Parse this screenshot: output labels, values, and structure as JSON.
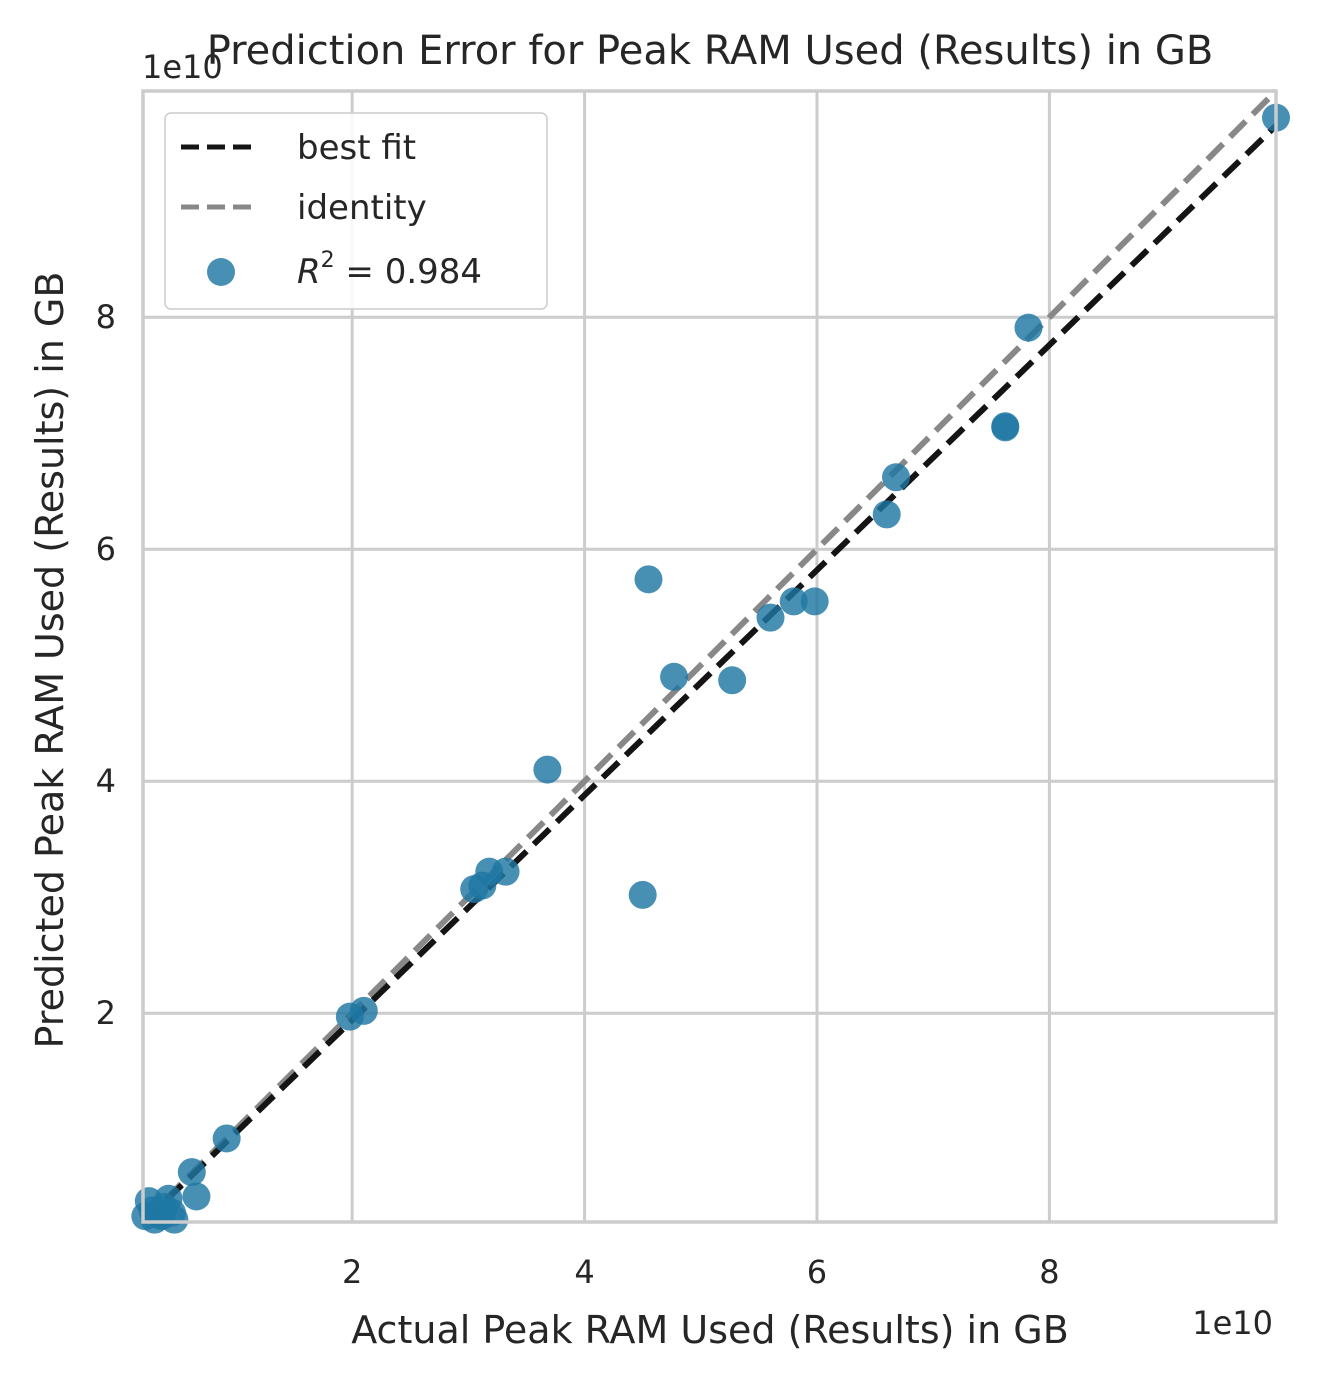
{
  "chart_data": {
    "type": "scatter",
    "title": "Prediction Error for Peak RAM Used (Results) in GB",
    "xlabel": "Actual Peak RAM Used (Results) in GB",
    "ylabel": "Predicted Peak RAM Used (Results) in GB",
    "x_offset_label": "1e10",
    "y_offset_label": "1e10",
    "xlim": [
      0.2,
      9.95
    ],
    "ylim": [
      0.2,
      9.95
    ],
    "xticks": [
      2,
      4,
      6,
      8
    ],
    "yticks": [
      2,
      4,
      6,
      8
    ],
    "grid": true,
    "legend_position": "upper left",
    "colors": {
      "points": "#1f78a4",
      "best_fit": "#141414",
      "identity": "#888888",
      "grid": "#cccccc",
      "frame": "#cccccc"
    },
    "series": [
      {
        "name": "R^2 = 0.984",
        "kind": "scatter",
        "points": [
          {
            "x": 0.22,
            "y": 0.25
          },
          {
            "x": 0.25,
            "y": 0.38
          },
          {
            "x": 0.28,
            "y": 0.3
          },
          {
            "x": 0.3,
            "y": 0.22
          },
          {
            "x": 0.33,
            "y": 0.28
          },
          {
            "x": 0.36,
            "y": 0.25
          },
          {
            "x": 0.38,
            "y": 0.33
          },
          {
            "x": 0.42,
            "y": 0.4
          },
          {
            "x": 0.45,
            "y": 0.28
          },
          {
            "x": 0.47,
            "y": 0.22
          },
          {
            "x": 0.62,
            "y": 0.63
          },
          {
            "x": 0.66,
            "y": 0.42
          },
          {
            "x": 0.92,
            "y": 0.92
          },
          {
            "x": 1.98,
            "y": 1.97
          },
          {
            "x": 2.1,
            "y": 2.02
          },
          {
            "x": 3.05,
            "y": 3.07
          },
          {
            "x": 3.12,
            "y": 3.1
          },
          {
            "x": 3.18,
            "y": 3.22
          },
          {
            "x": 3.32,
            "y": 3.22
          },
          {
            "x": 3.68,
            "y": 4.1
          },
          {
            "x": 4.5,
            "y": 3.02
          },
          {
            "x": 4.55,
            "y": 5.74
          },
          {
            "x": 4.77,
            "y": 4.9
          },
          {
            "x": 5.27,
            "y": 4.87
          },
          {
            "x": 5.6,
            "y": 5.41
          },
          {
            "x": 5.8,
            "y": 5.55
          },
          {
            "x": 5.98,
            "y": 5.55
          },
          {
            "x": 6.6,
            "y": 6.3
          },
          {
            "x": 6.68,
            "y": 6.62
          },
          {
            "x": 7.62,
            "y": 7.05
          },
          {
            "x": 7.62,
            "y": 7.06
          },
          {
            "x": 7.82,
            "y": 7.91
          },
          {
            "x": 9.95,
            "y": 9.72
          }
        ]
      },
      {
        "name": "best fit",
        "kind": "line",
        "slope": 0.97,
        "intercept": 0.0
      },
      {
        "name": "identity",
        "kind": "line",
        "slope": 1.0,
        "intercept": 0.0
      }
    ],
    "legend": {
      "entries": [
        {
          "label": "best fit",
          "style": "dashed",
          "color": "#141414"
        },
        {
          "label": "identity",
          "style": "dashed",
          "color": "#888888"
        },
        {
          "label_prefix": "R",
          "label_sup": "2",
          "label_suffix": " = 0.984",
          "style": "marker",
          "color": "#1f78a4"
        }
      ]
    }
  }
}
